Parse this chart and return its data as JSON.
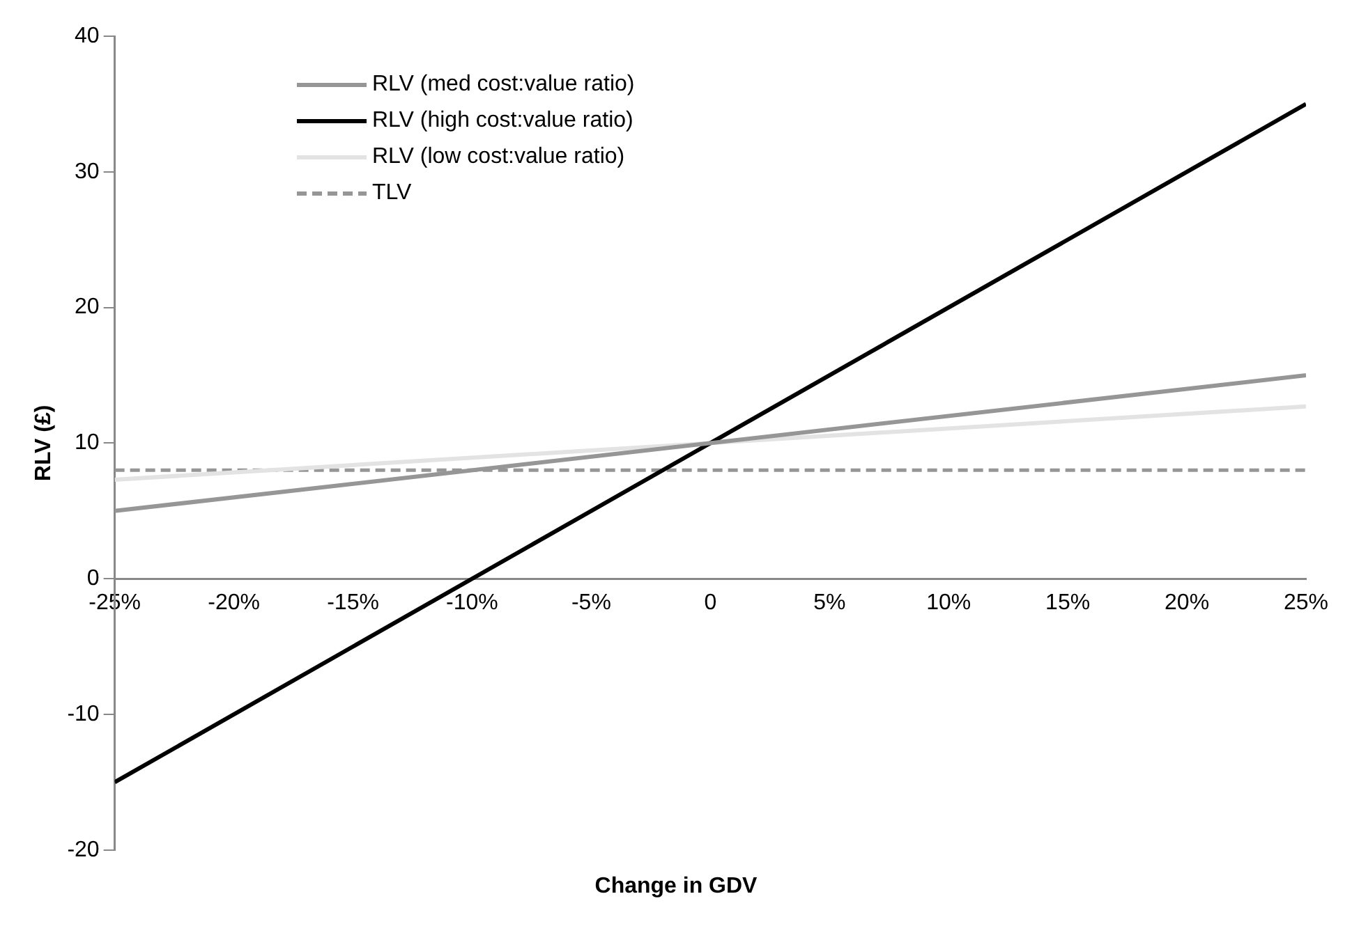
{
  "chart_data": {
    "type": "line",
    "xlabel": "Change in GDV",
    "ylabel": "RLV (£)",
    "x": [
      -25,
      25
    ],
    "series": [
      {
        "name": "RLV (med cost:value ratio)",
        "color": "#969696",
        "values": [
          5,
          15
        ]
      },
      {
        "name": "RLV (high cost:value ratio)",
        "color": "#000000",
        "values": [
          -15,
          35
        ]
      },
      {
        "name": "RLV (low cost:value ratio)",
        "color": "#e3e3e3",
        "values": [
          7.3,
          12.7
        ]
      },
      {
        "name": "TLV",
        "color": "#969696",
        "values": [
          8,
          8
        ],
        "line_style": "dashed"
      }
    ],
    "xlim": [
      -25,
      25
    ],
    "xticks": [
      {
        "value": -25,
        "label": "-25%"
      },
      {
        "value": -20,
        "label": "-20%"
      },
      {
        "value": -15,
        "label": "-15%"
      },
      {
        "value": -10,
        "label": "-10%"
      },
      {
        "value": -5,
        "label": "-5%"
      },
      0,
      {
        "value": 5,
        "label": "5%"
      },
      {
        "value": 10,
        "label": "10%"
      },
      {
        "value": 15,
        "label": "15%"
      },
      {
        "value": 20,
        "label": "20%"
      },
      {
        "value": 25,
        "label": "25%"
      }
    ],
    "ylim": [
      -20,
      40
    ],
    "yticks": [
      -20,
      -10,
      0,
      10,
      20,
      30,
      40
    ],
    "grid": false,
    "legend": "top left",
    "marker": "none",
    "line_style": "solid"
  }
}
